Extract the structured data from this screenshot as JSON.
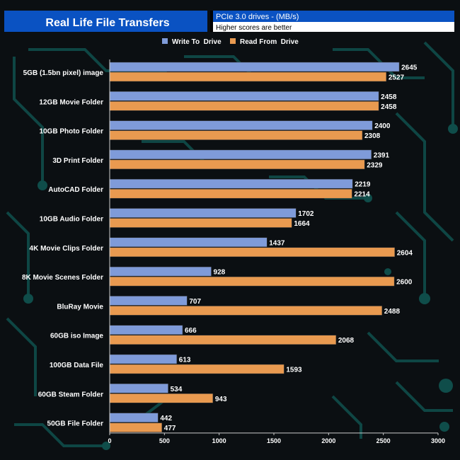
{
  "header": {
    "title": "Real Life File Transfers",
    "subtitle": "PCIe 3.0 drives - (MB/s)",
    "note": "Higher scores are better"
  },
  "colors": {
    "background": "#0b0f12",
    "circuit": "#0f4d4a",
    "header_blue": "#0a52c2",
    "write": "#7f9bd9",
    "read": "#e99a50",
    "text": "#ffffff"
  },
  "chart_data": {
    "type": "bar",
    "orientation": "horizontal",
    "categories": [
      "5GB (1.5bn pixel) image",
      "12GB Movie Folder",
      "10GB Photo Folder",
      "3D Print Folder",
      "AutoCAD Folder",
      "10GB Audio Folder",
      "4K Movie Clips Folder",
      "8K Movie Scenes Folder",
      "BluRay Movie",
      "60GB iso Image",
      "100GB Data File",
      "60GB Steam Folder",
      "50GB File Folder"
    ],
    "series": [
      {
        "name": "Write To  Drive",
        "values": [
          2645,
          2458,
          2400,
          2391,
          2219,
          1702,
          1437,
          928,
          707,
          666,
          613,
          534,
          442
        ]
      },
      {
        "name": "Read From  Drive",
        "values": [
          2527,
          2458,
          2308,
          2329,
          2214,
          1664,
          2604,
          2600,
          2488,
          2068,
          1593,
          943,
          477
        ]
      }
    ],
    "title": "Real Life File Transfers",
    "xlabel": "",
    "ylabel": "",
    "xlim": [
      0,
      3000
    ],
    "xticks": [
      "0",
      "500",
      "1000",
      "1500",
      "2000",
      "2500",
      "3000"
    ],
    "legend": "top-center",
    "grid": false
  }
}
